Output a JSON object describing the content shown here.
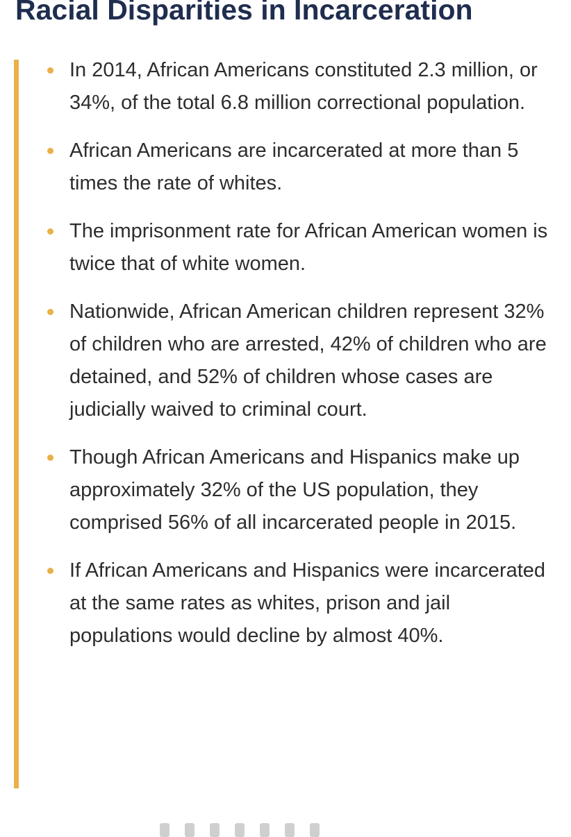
{
  "title": "Racial Disparities in Incarceration",
  "bullets": [
    "In 2014, African Americans constituted 2.3 million, or 34%, of the total 6.8 million correctional population.",
    "African Americans are incarcerated at more than 5 times the rate of whites.",
    "The imprisonment rate for African American women is twice that of white women.",
    "Nationwide, African American children represent 32% of children who are arrested, 42% of children who are detained, and 52% of children whose cases are judicially waived to criminal court.",
    "Though African Americans and Hispanics make up approximately 32% of the US population, they comprised 56% of all incarcerated people in 2015.",
    "If African Americans and Hispanics were incarcerated at the same rates as whites, prison and jail populations would decline by almost 40%."
  ],
  "colors": {
    "title": "#1f2d4f",
    "accent": "#e9b14a",
    "text": "#2d2d2d"
  }
}
